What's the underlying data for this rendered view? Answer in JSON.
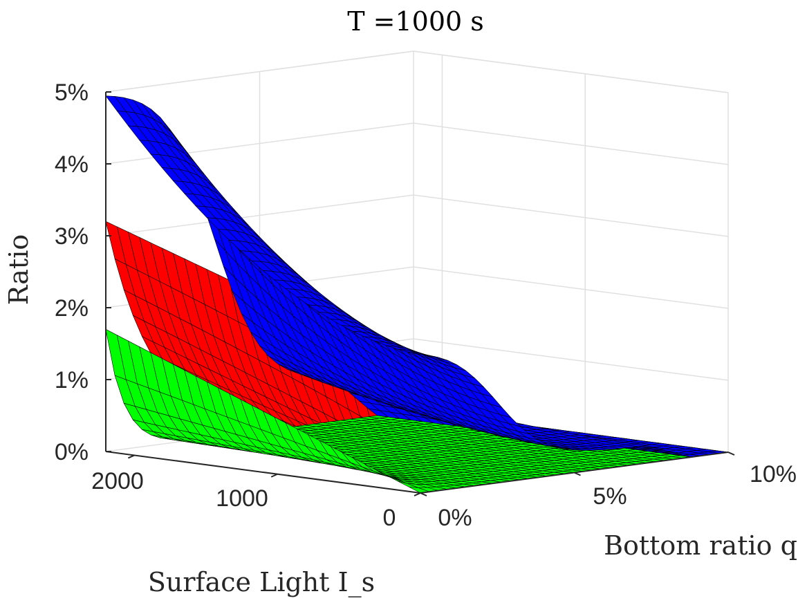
{
  "chart_data": {
    "type": "surface",
    "title": "T =1000 s",
    "xlabel": "Bottom ratio q",
    "ylabel": "Surface Light I_s",
    "zlabel": "Ratio",
    "x_ticks": [
      "0%",
      "5%",
      "10%"
    ],
    "y_ticks": [
      "2000",
      "1000",
      "0"
    ],
    "z_ticks": [
      "0%",
      "1%",
      "2%",
      "3%",
      "4%",
      "5%"
    ],
    "xlim": [
      0,
      0.1
    ],
    "ylim": [
      0,
      2200
    ],
    "zlim": [
      0,
      0.05
    ],
    "grid": true,
    "series": [
      {
        "color": "#0000ff",
        "surface": "z rises with Is; about 5% at q=0, Is=2200; about 2% at q=0, Is=0; decays toward 0% as q approaches 10%"
      },
      {
        "color": "#ff0000",
        "surface": "z about 3.2% at q=0, Is=2200, dropping to about 0% at q≈1–3%; about 1.7% at q=0, Is=0"
      },
      {
        "color": "#00ff00",
        "surface": "nearly planar along q=0 edge, rising linearly from about 0% at Is=0 to about 1.7% at Is=2200"
      }
    ]
  }
}
